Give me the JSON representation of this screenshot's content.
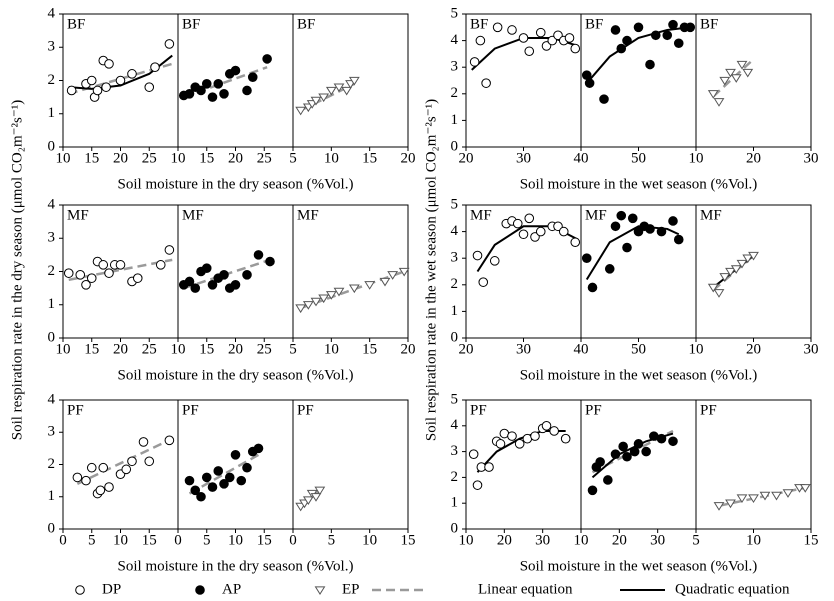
{
  "chart_data": [
    {
      "type": "scatter",
      "label": "BF",
      "marker": "open-circle",
      "xlim": [
        10,
        30
      ],
      "xticks": [
        10,
        15,
        20,
        25
      ],
      "ylim": [
        0,
        4
      ],
      "yticks": [
        0,
        1,
        2,
        3,
        4
      ],
      "x": [
        11.5,
        14,
        15,
        15.5,
        16,
        17,
        17.5,
        18,
        20,
        22,
        25,
        26,
        28.5
      ],
      "values": [
        1.7,
        1.9,
        2.0,
        1.5,
        1.7,
        2.6,
        1.8,
        2.5,
        2.0,
        2.2,
        1.8,
        2.4,
        3.1
      ],
      "fits": [
        {
          "kind": "linear",
          "x": [
            11,
            29
          ],
          "y": [
            1.6,
            2.5
          ]
        },
        {
          "kind": "quadratic",
          "x": [
            11,
            15,
            20,
            25,
            29
          ],
          "y": [
            1.8,
            1.75,
            1.85,
            2.2,
            2.75
          ]
        }
      ]
    },
    {
      "type": "scatter",
      "label": "BF",
      "marker": "filled-circle",
      "xlim": [
        10,
        30
      ],
      "xticks": [
        10,
        15,
        20,
        25
      ],
      "ylim": [
        0,
        4
      ],
      "xlabel": "Soil moisture in the dry season (%Vol.)",
      "x": [
        11,
        12,
        13,
        14,
        15,
        16,
        17,
        18,
        19,
        20,
        22,
        23,
        25.5
      ],
      "values": [
        1.55,
        1.6,
        1.8,
        1.7,
        1.9,
        1.5,
        1.9,
        1.6,
        2.2,
        2.3,
        1.7,
        2.1,
        2.65
      ],
      "fits": [
        {
          "kind": "linear",
          "x": [
            11,
            25.5
          ],
          "y": [
            1.5,
            2.4
          ]
        }
      ]
    },
    {
      "type": "scatter",
      "label": "BF",
      "marker": "open-triangle",
      "xlim": [
        5,
        20
      ],
      "xticks": [
        5,
        10,
        15,
        20
      ],
      "ylim": [
        0,
        4
      ],
      "x": [
        6,
        7,
        7.5,
        8,
        9,
        10,
        11,
        12,
        12.5,
        13
      ],
      "values": [
        1.1,
        1.2,
        1.3,
        1.4,
        1.5,
        1.7,
        1.8,
        1.7,
        1.9,
        2.0
      ],
      "fits": [
        {
          "kind": "linear",
          "x": [
            6,
            13
          ],
          "y": [
            1.1,
            1.9
          ]
        }
      ]
    },
    {
      "type": "scatter",
      "label": "MF",
      "marker": "open-circle",
      "xlim": [
        10,
        30
      ],
      "xticks": [
        10,
        15,
        20,
        25
      ],
      "ylim": [
        0,
        4
      ],
      "yticks": [
        0,
        1,
        2,
        3,
        4
      ],
      "x": [
        11,
        13,
        14,
        15,
        16,
        17,
        18,
        19,
        20,
        22,
        23,
        27,
        28.5
      ],
      "values": [
        1.95,
        1.9,
        1.6,
        1.8,
        2.3,
        2.2,
        1.95,
        2.2,
        2.2,
        1.7,
        1.8,
        2.2,
        2.65
      ],
      "fits": [
        {
          "kind": "linear",
          "x": [
            11,
            29
          ],
          "y": [
            1.75,
            2.35
          ]
        }
      ]
    },
    {
      "type": "scatter",
      "label": "MF",
      "marker": "filled-circle",
      "xlim": [
        10,
        30
      ],
      "xticks": [
        10,
        15,
        20,
        25
      ],
      "ylim": [
        0,
        4
      ],
      "xlabel": "Soil moisture in the dry season (%Vol.)",
      "x": [
        11,
        12,
        13,
        14,
        15,
        16,
        17,
        18,
        19,
        20,
        22,
        24,
        26
      ],
      "values": [
        1.6,
        1.7,
        1.5,
        2.0,
        2.1,
        1.6,
        1.8,
        1.9,
        1.5,
        1.6,
        1.9,
        2.5,
        2.3
      ],
      "fits": [
        {
          "kind": "linear",
          "x": [
            11,
            26
          ],
          "y": [
            1.5,
            2.35
          ]
        }
      ]
    },
    {
      "type": "scatter",
      "label": "MF",
      "marker": "open-triangle",
      "xlim": [
        5,
        20
      ],
      "xticks": [
        5,
        10,
        15,
        20
      ],
      "ylim": [
        0,
        4
      ],
      "x": [
        6,
        7,
        8,
        9,
        10,
        11,
        13,
        15,
        17,
        18,
        19.5
      ],
      "values": [
        0.9,
        1.0,
        1.1,
        1.2,
        1.3,
        1.4,
        1.5,
        1.6,
        1.7,
        1.9,
        2.0
      ],
      "fits": [
        {
          "kind": "linear",
          "x": [
            6,
            19.5
          ],
          "y": [
            0.9,
            2.0
          ]
        }
      ]
    },
    {
      "type": "scatter",
      "label": "PF",
      "marker": "open-circle",
      "xlim": [
        0,
        20
      ],
      "xticks": [
        0,
        5,
        10,
        15
      ],
      "ylim": [
        0,
        4
      ],
      "yticks": [
        0,
        1,
        2,
        3,
        4
      ],
      "x": [
        2.5,
        4,
        5,
        6,
        6.5,
        7,
        8,
        10,
        11,
        12,
        14,
        15,
        18.5
      ],
      "values": [
        1.6,
        1.5,
        1.9,
        1.1,
        1.2,
        1.9,
        1.3,
        1.7,
        1.85,
        2.1,
        2.7,
        2.1,
        2.75
      ],
      "fits": [
        {
          "kind": "linear",
          "x": [
            2.5,
            19
          ],
          "y": [
            1.4,
            2.8
          ]
        }
      ]
    },
    {
      "type": "scatter",
      "label": "PF",
      "marker": "filled-circle",
      "xlim": [
        0,
        20
      ],
      "xticks": [
        0,
        5,
        10,
        15
      ],
      "ylim": [
        0,
        4
      ],
      "xlabel": "Soil moisture in the dry season (%Vol.)",
      "x": [
        2,
        3,
        4,
        5,
        6,
        7,
        8,
        9,
        10,
        11,
        12,
        13,
        14
      ],
      "values": [
        1.5,
        1.2,
        1.0,
        1.6,
        1.3,
        1.8,
        1.4,
        1.6,
        2.3,
        1.5,
        1.9,
        2.4,
        2.5
      ],
      "fits": [
        {
          "kind": "linear",
          "x": [
            2,
            14
          ],
          "y": [
            1.1,
            2.3
          ]
        }
      ]
    },
    {
      "type": "scatter",
      "label": "PF",
      "marker": "open-triangle",
      "xlim": [
        0,
        15
      ],
      "xticks": [
        0,
        5,
        10,
        15
      ],
      "ylim": [
        0,
        4
      ],
      "x": [
        1,
        1.5,
        2,
        2.5,
        3,
        3.5
      ],
      "values": [
        0.7,
        0.8,
        0.9,
        1.1,
        1.0,
        1.2
      ],
      "fits": [
        {
          "kind": "linear",
          "x": [
            1,
            3.5
          ],
          "y": [
            0.7,
            1.2
          ]
        }
      ]
    },
    {
      "type": "scatter",
      "label": "BF",
      "marker": "open-circle",
      "xlim": [
        20,
        40
      ],
      "xticks": [
        20,
        30
      ],
      "ylim": [
        0,
        5
      ],
      "yticks": [
        0,
        1,
        2,
        3,
        4,
        5
      ],
      "x": [
        21.5,
        22.5,
        23.5,
        25.5,
        28,
        30,
        31,
        33,
        34,
        35,
        36,
        37,
        38,
        39
      ],
      "values": [
        3.2,
        4.0,
        2.4,
        4.5,
        4.4,
        4.1,
        3.6,
        4.3,
        3.8,
        4.0,
        4.2,
        4.0,
        4.1,
        3.7
      ],
      "fits": [
        {
          "kind": "quadratic",
          "x": [
            21,
            25,
            30,
            35,
            39.5
          ],
          "y": [
            2.9,
            3.7,
            4.1,
            4.1,
            3.8
          ]
        }
      ]
    },
    {
      "type": "scatter",
      "label": "BF",
      "marker": "filled-circle",
      "xlim": [
        40,
        60
      ],
      "xticks": [
        40,
        50
      ],
      "ylim": [
        0,
        5
      ],
      "xlabel": "Soil moisture in the wet season (%Vol.)",
      "x": [
        41,
        41.5,
        44,
        46,
        47,
        48,
        50,
        52,
        53,
        55,
        56,
        57,
        58,
        59
      ],
      "values": [
        2.7,
        2.4,
        1.8,
        4.4,
        3.7,
        4.0,
        4.5,
        3.1,
        4.2,
        4.2,
        4.6,
        3.9,
        4.5,
        4.5
      ],
      "fits": [
        {
          "kind": "quadratic",
          "x": [
            41,
            45,
            50,
            55,
            59
          ],
          "y": [
            2.4,
            3.4,
            4.1,
            4.4,
            4.5
          ]
        }
      ]
    },
    {
      "type": "scatter",
      "label": "BF",
      "marker": "open-triangle",
      "xlim": [
        10,
        30
      ],
      "xticks": [
        10,
        20,
        30
      ],
      "ylim": [
        0,
        5
      ],
      "x": [
        13,
        14,
        15,
        16,
        17,
        18,
        19
      ],
      "values": [
        2.0,
        1.7,
        2.5,
        2.8,
        2.6,
        3.1,
        2.8
      ],
      "fits": [
        {
          "kind": "linear",
          "x": [
            13,
            19.5
          ],
          "y": [
            1.9,
            3.2
          ]
        }
      ]
    },
    {
      "type": "scatter",
      "label": "MF",
      "marker": "open-circle",
      "xlim": [
        20,
        40
      ],
      "xticks": [
        20,
        30
      ],
      "ylim": [
        0,
        5
      ],
      "yticks": [
        0,
        1,
        2,
        3,
        4,
        5
      ],
      "x": [
        22,
        23,
        25,
        27,
        28,
        29,
        30,
        31,
        32,
        33,
        35,
        36,
        37,
        39
      ],
      "values": [
        3.1,
        2.1,
        2.9,
        4.3,
        4.4,
        4.3,
        3.9,
        4.5,
        3.8,
        4.0,
        4.2,
        4.2,
        4.0,
        3.6
      ],
      "fits": [
        {
          "kind": "quadratic",
          "x": [
            22,
            25,
            30,
            35,
            39.5
          ],
          "y": [
            2.5,
            3.5,
            4.2,
            4.2,
            3.7
          ]
        }
      ]
    },
    {
      "type": "scatter",
      "label": "MF",
      "marker": "filled-circle",
      "xlim": [
        40,
        60
      ],
      "xticks": [
        40,
        50
      ],
      "ylim": [
        0,
        5
      ],
      "xlabel": "Soil moisture in the wet season (%Vol.)",
      "x": [
        41,
        42,
        45,
        46,
        47,
        48,
        49,
        50,
        51,
        52,
        54,
        56,
        57
      ],
      "values": [
        3.0,
        1.9,
        2.6,
        4.2,
        4.6,
        3.4,
        4.5,
        4.0,
        4.2,
        4.1,
        4.0,
        4.4,
        3.7
      ],
      "fits": [
        {
          "kind": "quadratic",
          "x": [
            41,
            45,
            50,
            55,
            57
          ],
          "y": [
            2.2,
            3.6,
            4.2,
            4.1,
            3.9
          ]
        }
      ]
    },
    {
      "type": "scatter",
      "label": "MF",
      "marker": "open-triangle",
      "xlim": [
        10,
        30
      ],
      "xticks": [
        10,
        20,
        30
      ],
      "ylim": [
        0,
        5
      ],
      "x": [
        13,
        14,
        15,
        16,
        17,
        18,
        19,
        20
      ],
      "values": [
        1.9,
        1.7,
        2.3,
        2.5,
        2.6,
        2.8,
        3.0,
        3.1
      ],
      "fits": [
        {
          "kind": "linear",
          "x": [
            13,
            20
          ],
          "y": [
            1.8,
            3.1
          ]
        },
        {
          "kind": "quadratic",
          "x": [
            13,
            16.5,
            20
          ],
          "y": [
            1.9,
            2.5,
            3.1
          ]
        }
      ]
    },
    {
      "type": "scatter",
      "label": "PF",
      "marker": "open-circle",
      "xlim": [
        10,
        40
      ],
      "xticks": [
        10,
        20,
        30
      ],
      "ylim": [
        0,
        5
      ],
      "yticks": [
        0,
        1,
        2,
        3,
        4,
        5
      ],
      "x": [
        12,
        13,
        14,
        16,
        18,
        19,
        20,
        22,
        24,
        26,
        28,
        30,
        31,
        33,
        36
      ],
      "values": [
        2.9,
        1.7,
        2.4,
        2.4,
        3.4,
        3.3,
        3.7,
        3.6,
        3.3,
        3.5,
        3.6,
        3.9,
        4.0,
        3.8,
        3.5
      ],
      "fits": [
        {
          "kind": "quadratic",
          "x": [
            13,
            18,
            24,
            30,
            36
          ],
          "y": [
            2.2,
            3.0,
            3.5,
            3.8,
            3.8
          ]
        }
      ]
    },
    {
      "type": "scatter",
      "label": "PF",
      "marker": "filled-circle",
      "xlim": [
        10,
        40
      ],
      "xticks": [
        10,
        20,
        30
      ],
      "ylim": [
        0,
        5
      ],
      "xlabel": "Soil moisture in the wet season (%Vol.)",
      "x": [
        13,
        14,
        15,
        17,
        19,
        21,
        22,
        24,
        25,
        27,
        29,
        31,
        34
      ],
      "values": [
        1.5,
        2.4,
        2.6,
        1.9,
        2.9,
        3.2,
        2.8,
        3.0,
        3.3,
        3.0,
        3.6,
        3.5,
        3.4
      ],
      "fits": [
        {
          "kind": "linear",
          "x": [
            13,
            34
          ],
          "y": [
            2.2,
            3.8
          ]
        },
        {
          "kind": "quadratic",
          "x": [
            13,
            20,
            27,
            34
          ],
          "y": [
            2.0,
            2.9,
            3.4,
            3.7
          ]
        }
      ]
    },
    {
      "type": "scatter",
      "label": "PF",
      "marker": "open-triangle",
      "xlim": [
        5,
        15
      ],
      "xticks": [
        5,
        10,
        15
      ],
      "ylim": [
        0,
        5
      ],
      "x": [
        7,
        8,
        9,
        10,
        11,
        12,
        13,
        14,
        14.5
      ],
      "values": [
        0.9,
        1.0,
        1.2,
        1.2,
        1.3,
        1.3,
        1.4,
        1.6,
        1.6
      ],
      "fits": [
        {
          "kind": "linear",
          "x": [
            7,
            14.5
          ],
          "y": [
            0.9,
            1.6
          ]
        }
      ]
    }
  ],
  "y_titles": [
    "Soil respiration rate in the dry season (μmol CO₂m⁻²s⁻¹)",
    "Soil respiration rate in the wet season (μmol CO₂m⁻²s⁻¹)"
  ],
  "legend": {
    "markers": [
      {
        "name": "DP",
        "marker": "open-circle"
      },
      {
        "name": "AP",
        "marker": "filled-circle"
      },
      {
        "name": "EP",
        "marker": "open-triangle"
      }
    ],
    "lines": [
      {
        "name": "Linear equation",
        "kind": "linear"
      },
      {
        "name": "Quadratic equation",
        "kind": "quadratic"
      }
    ]
  }
}
